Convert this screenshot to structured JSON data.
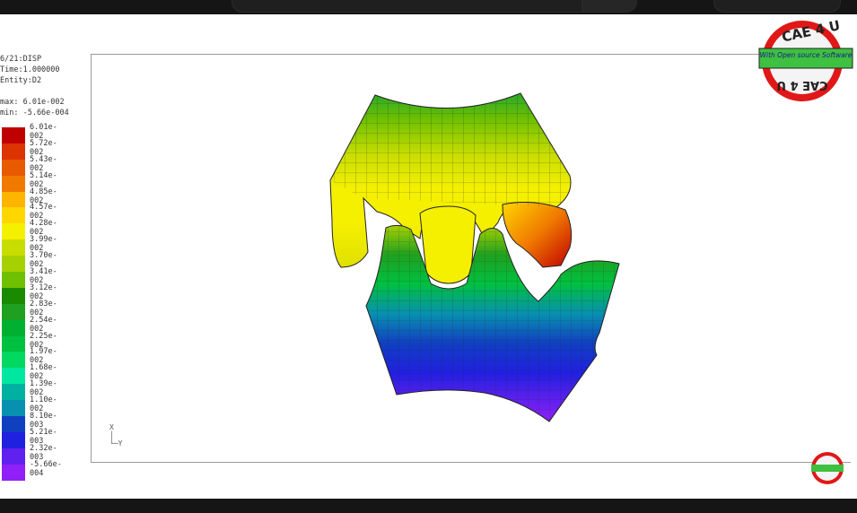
{
  "header_lines": [
    "6/21:DISP",
    "Time:1.000000",
    "Entity:D2"
  ],
  "max_label": "max: 6.01e-002",
  "min_label": "min: -5.66e-004",
  "legend": [
    {
      "label": "6.01e-002",
      "color": "#c00000"
    },
    {
      "label": "5.72e-002",
      "color": "#dd3300"
    },
    {
      "label": "5.43e-002",
      "color": "#e85a00"
    },
    {
      "label": "5.14e-002",
      "color": "#f07a00"
    },
    {
      "label": "4.85e-002",
      "color": "#ffb400"
    },
    {
      "label": "4.57e-002",
      "color": "#ffd600"
    },
    {
      "label": "4.28e-002",
      "color": "#f5f000"
    },
    {
      "label": "3.99e-002",
      "color": "#c8dd00"
    },
    {
      "label": "3.70e-002",
      "color": "#a6d000"
    },
    {
      "label": "3.41e-002",
      "color": "#6ec000"
    },
    {
      "label": "3.12e-002",
      "color": "#1a8a00"
    },
    {
      "label": "2.83e-002",
      "color": "#20a020"
    },
    {
      "label": "2.54e-002",
      "color": "#00b030"
    },
    {
      "label": "2.25e-002",
      "color": "#00c040"
    },
    {
      "label": "1.97e-002",
      "color": "#00d860"
    },
    {
      "label": "1.68e-002",
      "color": "#00e8a0"
    },
    {
      "label": "1.39e-002",
      "color": "#00b0a0"
    },
    {
      "label": "1.10e-002",
      "color": "#0890b0"
    },
    {
      "label": "8.10e-003",
      "color": "#1040c0"
    },
    {
      "label": "5.21e-003",
      "color": "#2020e0"
    },
    {
      "label": "2.32e-003",
      "color": "#6020f0"
    },
    {
      "label": "-5.66e-004",
      "color": "#9020f8"
    }
  ],
  "axis_label": "X",
  "axis_label_y": "Y",
  "logo": {
    "top_text": "CAE 4 U",
    "band_text": "With Open source Software",
    "bottom_text": "CAE 4 U"
  }
}
